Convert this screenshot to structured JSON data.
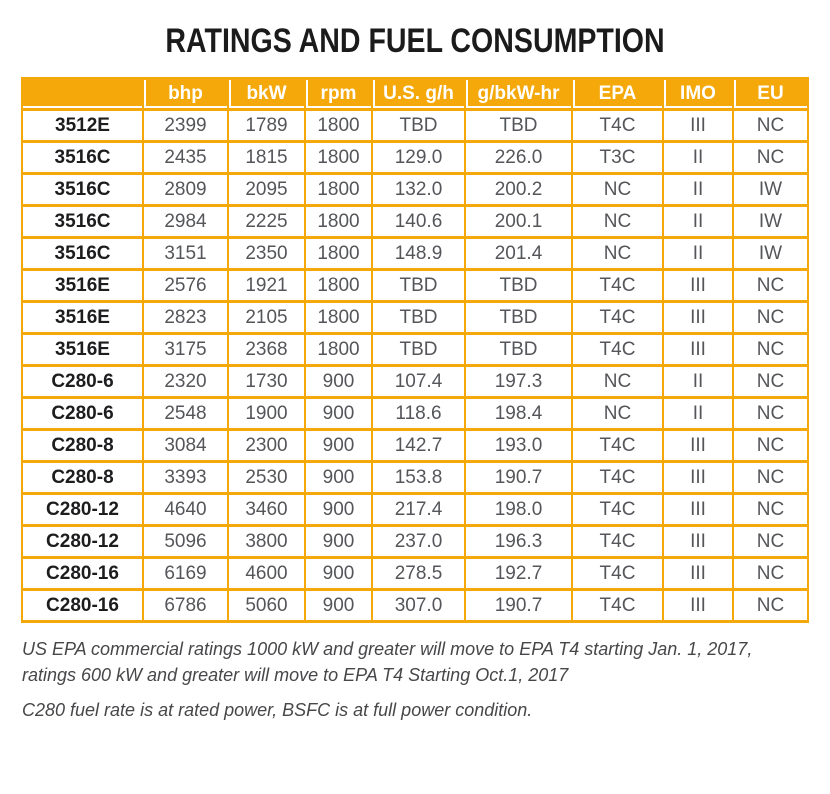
{
  "title": "RATINGS AND FUEL CONSUMPTION",
  "colors": {
    "gold": "#F5A80A",
    "header_text": "#FFFFFF",
    "model_text": "#1D1D1F",
    "value_text": "#55565A"
  },
  "table": {
    "headers": [
      "",
      "bhp",
      "bkW",
      "rpm",
      "U.S. g/h",
      "g/bkW-hr",
      "EPA",
      "IMO",
      "EU"
    ],
    "rows": [
      {
        "model": "3512E",
        "values": [
          "2399",
          "1789",
          "1800",
          "TBD",
          "TBD",
          "T4C",
          "III",
          "NC"
        ]
      },
      {
        "model": "3516C",
        "values": [
          "2435",
          "1815",
          "1800",
          "129.0",
          "226.0",
          "T3C",
          "II",
          "NC"
        ]
      },
      {
        "model": "3516C",
        "values": [
          "2809",
          "2095",
          "1800",
          "132.0",
          "200.2",
          "NC",
          "II",
          "IW"
        ]
      },
      {
        "model": "3516C",
        "values": [
          "2984",
          "2225",
          "1800",
          "140.6",
          "200.1",
          "NC",
          "II",
          "IW"
        ]
      },
      {
        "model": "3516C",
        "values": [
          "3151",
          "2350",
          "1800",
          "148.9",
          "201.4",
          "NC",
          "II",
          "IW"
        ]
      },
      {
        "model": "3516E",
        "values": [
          "2576",
          "1921",
          "1800",
          "TBD",
          "TBD",
          "T4C",
          "III",
          "NC"
        ]
      },
      {
        "model": "3516E",
        "values": [
          "2823",
          "2105",
          "1800",
          "TBD",
          "TBD",
          "T4C",
          "III",
          "NC"
        ]
      },
      {
        "model": "3516E",
        "values": [
          "3175",
          "2368",
          "1800",
          "TBD",
          "TBD",
          "T4C",
          "III",
          "NC"
        ]
      },
      {
        "model": "C280-6",
        "values": [
          "2320",
          "1730",
          "900",
          "107.4",
          "197.3",
          "NC",
          "II",
          "NC"
        ]
      },
      {
        "model": "C280-6",
        "values": [
          "2548",
          "1900",
          "900",
          "118.6",
          "198.4",
          "NC",
          "II",
          "NC"
        ]
      },
      {
        "model": "C280-8",
        "values": [
          "3084",
          "2300",
          "900",
          "142.7",
          "193.0",
          "T4C",
          "III",
          "NC"
        ]
      },
      {
        "model": "C280-8",
        "values": [
          "3393",
          "2530",
          "900",
          "153.8",
          "190.7",
          "T4C",
          "III",
          "NC"
        ]
      },
      {
        "model": "C280-12",
        "values": [
          "4640",
          "3460",
          "900",
          "217.4",
          "198.0",
          "T4C",
          "III",
          "NC"
        ]
      },
      {
        "model": "C280-12",
        "values": [
          "5096",
          "3800",
          "900",
          "237.0",
          "196.3",
          "T4C",
          "III",
          "NC"
        ]
      },
      {
        "model": "C280-16",
        "values": [
          "6169",
          "4600",
          "900",
          "278.5",
          "192.7",
          "T4C",
          "III",
          "NC"
        ]
      },
      {
        "model": "C280-16",
        "values": [
          "6786",
          "5060",
          "900",
          "307.0",
          "190.7",
          "T4C",
          "III",
          "NC"
        ]
      }
    ]
  },
  "footnotes": [
    "US EPA commercial ratings 1000 kW and greater will move to EPA T4 starting Jan. 1, 2017, ratings 600 kW and greater will move to EPA T4 Starting Oct.1, 2017",
    "C280 fuel rate is at rated power, BSFC is at full power condition."
  ]
}
